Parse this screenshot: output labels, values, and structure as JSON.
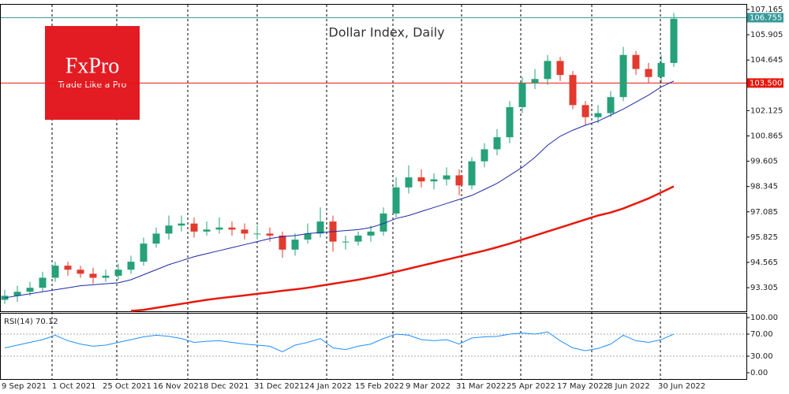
{
  "logo": {
    "brand": "FxPro",
    "tagline": "Trade Like a Pro"
  },
  "chart_data": [
    {
      "type": "candlestick",
      "title": "Dollar Index, Daily",
      "categories": [
        "9 Sep 2021",
        null,
        null,
        null,
        "1 Oct 2021",
        null,
        null,
        null,
        "25 Oct 2021",
        null,
        null,
        null,
        "16 Nov 2021",
        null,
        null,
        null,
        "8 Dec 2021",
        null,
        null,
        null,
        "31 Dec 2021",
        null,
        null,
        null,
        "24 Jan 2022",
        null,
        null,
        null,
        "15 Feb 2022",
        null,
        null,
        null,
        "9 Mar 2022",
        null,
        null,
        null,
        "31 Mar 2022",
        null,
        null,
        null,
        "25 Apr 2022",
        null,
        null,
        null,
        "17 May 2022",
        null,
        null,
        null,
        "8 Jun 2022",
        null,
        null,
        null,
        "30 Jun 2022",
        null
      ],
      "open": [
        92.7,
        92.9,
        93.1,
        93.3,
        93.8,
        94.4,
        94.2,
        94.0,
        93.8,
        93.9,
        94.2,
        94.6,
        95.5,
        96.0,
        96.4,
        96.5,
        96.1,
        96.2,
        96.3,
        96.2,
        96.0,
        96.0,
        95.9,
        95.2,
        95.7,
        96.0,
        96.6,
        95.6,
        95.6,
        95.9,
        96.1,
        97.0,
        98.3,
        98.8,
        98.6,
        98.7,
        98.9,
        98.4,
        99.6,
        100.2,
        100.8,
        102.3,
        103.5,
        103.7,
        104.6,
        103.9,
        102.4,
        101.8,
        102.0,
        102.8,
        104.9,
        104.2,
        103.8,
        104.5
      ],
      "high": [
        93.2,
        93.4,
        93.6,
        94.1,
        94.6,
        94.6,
        94.4,
        94.3,
        94.2,
        94.5,
        94.9,
        95.8,
        96.3,
        96.9,
        96.9,
        96.8,
        96.6,
        96.8,
        96.6,
        96.5,
        96.4,
        96.3,
        96.1,
        96.0,
        96.5,
        97.3,
        96.9,
        95.9,
        96.1,
        96.4,
        97.3,
        98.8,
        99.4,
        99.2,
        99.0,
        99.3,
        99.2,
        99.8,
        100.5,
        101.2,
        102.6,
        103.8,
        104.2,
        104.9,
        104.8,
        104.1,
        102.6,
        102.4,
        103.1,
        105.3,
        105.1,
        104.5,
        104.9,
        107.0
      ],
      "low": [
        92.5,
        92.6,
        92.9,
        93.1,
        93.6,
        93.9,
        93.8,
        93.5,
        93.6,
        93.7,
        94.0,
        94.4,
        95.3,
        95.7,
        96.1,
        95.8,
        95.9,
        96.0,
        95.9,
        95.7,
        95.7,
        95.6,
        94.8,
        94.9,
        95.5,
        95.8,
        95.1,
        95.2,
        95.4,
        95.6,
        95.9,
        96.8,
        98.0,
        98.3,
        98.2,
        98.4,
        97.9,
        98.2,
        99.3,
        99.9,
        100.5,
        102.0,
        103.2,
        103.4,
        103.6,
        102.2,
        101.4,
        101.5,
        101.8,
        102.6,
        103.9,
        103.5,
        103.5,
        104.3
      ],
      "close": [
        92.9,
        93.1,
        93.3,
        93.8,
        94.4,
        94.2,
        94.0,
        93.8,
        93.9,
        94.2,
        94.6,
        95.5,
        96.0,
        96.4,
        96.5,
        96.1,
        96.2,
        96.3,
        96.2,
        96.0,
        96.0,
        95.9,
        95.2,
        95.7,
        96.0,
        96.6,
        95.6,
        95.6,
        95.9,
        96.1,
        97.0,
        98.3,
        98.8,
        98.6,
        98.7,
        98.9,
        98.4,
        99.6,
        100.2,
        100.8,
        102.3,
        103.5,
        103.7,
        104.6,
        103.9,
        102.4,
        101.8,
        102.0,
        102.8,
        104.9,
        104.2,
        103.8,
        104.5,
        106.7
      ],
      "up_color": "#26a17a",
      "down_color": "#e23a2e",
      "lines": [
        {
          "color": "#1c2aa8",
          "values": [
            92.8,
            92.9,
            93.0,
            93.1,
            93.2,
            93.3,
            93.4,
            93.45,
            93.5,
            93.55,
            93.7,
            93.95,
            94.2,
            94.45,
            94.65,
            94.85,
            95.0,
            95.15,
            95.3,
            95.45,
            95.6,
            95.75,
            95.85,
            95.9,
            96.0,
            96.05,
            96.1,
            96.15,
            96.2,
            96.3,
            96.5,
            96.75,
            96.9,
            97.1,
            97.3,
            97.5,
            97.7,
            97.9,
            98.2,
            98.5,
            98.9,
            99.3,
            99.8,
            100.4,
            100.85,
            101.15,
            101.4,
            101.6,
            101.9,
            102.2,
            102.55,
            102.9,
            103.3,
            103.6
          ]
        },
        {
          "color": "#e8180c",
          "values": [
            null,
            null,
            null,
            null,
            null,
            null,
            null,
            null,
            null,
            null,
            92.15,
            92.2,
            92.3,
            92.4,
            92.5,
            92.6,
            92.7,
            92.78,
            92.85,
            92.92,
            93.0,
            93.07,
            93.15,
            93.22,
            93.3,
            93.4,
            93.5,
            93.6,
            93.7,
            93.82,
            93.95,
            94.1,
            94.25,
            94.4,
            94.55,
            94.7,
            94.85,
            95.0,
            95.15,
            95.32,
            95.5,
            95.7,
            95.9,
            96.1,
            96.3,
            96.5,
            96.7,
            96.9,
            97.05,
            97.25,
            97.5,
            97.75,
            98.05,
            98.35
          ]
        }
      ],
      "hlines": [
        {
          "value": 106.755,
          "color": "#3a9a9a"
        },
        {
          "value": 103.5,
          "label": "103.500",
          "color": "#e8180c"
        }
      ],
      "ylim": [
        92.13,
        107.44
      ],
      "yticks": [
        107.165,
        105.905,
        104.645,
        102.125,
        100.865,
        99.605,
        98.345,
        97.085,
        95.825,
        94.565,
        93.305
      ]
    },
    {
      "type": "line",
      "title": "RSI(14) 70.12",
      "color": "#1e90ff",
      "values": [
        45,
        50,
        55,
        60,
        68,
        58,
        52,
        48,
        50,
        55,
        60,
        65,
        68,
        66,
        62,
        55,
        57,
        58,
        55,
        52,
        50,
        48,
        38,
        50,
        55,
        62,
        45,
        42,
        48,
        52,
        62,
        70,
        68,
        60,
        58,
        60,
        52,
        63,
        65,
        66,
        70,
        72,
        70,
        74,
        58,
        45,
        40,
        44,
        52,
        68,
        58,
        55,
        60,
        70.12
      ],
      "levels": [
        70,
        30
      ],
      "ylim": [
        -11.4,
        108.6
      ],
      "yticks": [
        {
          "value": 100,
          "label": "100.00"
        },
        {
          "value": 70,
          "label": "70.00"
        },
        {
          "value": 30,
          "label": "30.00"
        },
        {
          "value": 0,
          "label": "0.00"
        }
      ]
    }
  ]
}
